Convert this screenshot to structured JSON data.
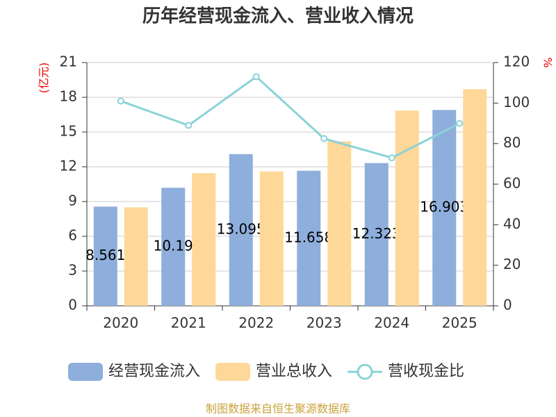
{
  "chart_data": {
    "type": "bar-line",
    "title": "历年经营现金流入、营业收入情况",
    "y_label": "(亿元)",
    "y2_label": "%",
    "categories": [
      "2020",
      "2021",
      "2022",
      "2023",
      "2024",
      "2025"
    ],
    "series": [
      {
        "name": "经营现金流入",
        "type": "bar",
        "color": "#8eaedb",
        "values": [
          8.561,
          10.19,
          13.095,
          11.658,
          12.323,
          16.903
        ],
        "show_labels": true
      },
      {
        "name": "营业总收入",
        "type": "bar",
        "color": "#fdd898",
        "values": [
          8.5,
          11.45,
          11.6,
          14.2,
          16.85,
          18.7
        ]
      },
      {
        "name": "营收现金比",
        "type": "line",
        "axis": "y2",
        "color": "#8ad3d6",
        "values": [
          101,
          89,
          113,
          82.5,
          73,
          90
        ]
      }
    ],
    "ylim": [
      0,
      21
    ],
    "yticks": [
      0,
      3,
      6,
      9,
      12,
      15,
      18,
      21
    ],
    "y2lim": [
      0,
      120
    ],
    "y2ticks": [
      0,
      20,
      40,
      60,
      80,
      100,
      120
    ],
    "grid": true,
    "source": "制图数据来自恒生聚源数据库"
  }
}
